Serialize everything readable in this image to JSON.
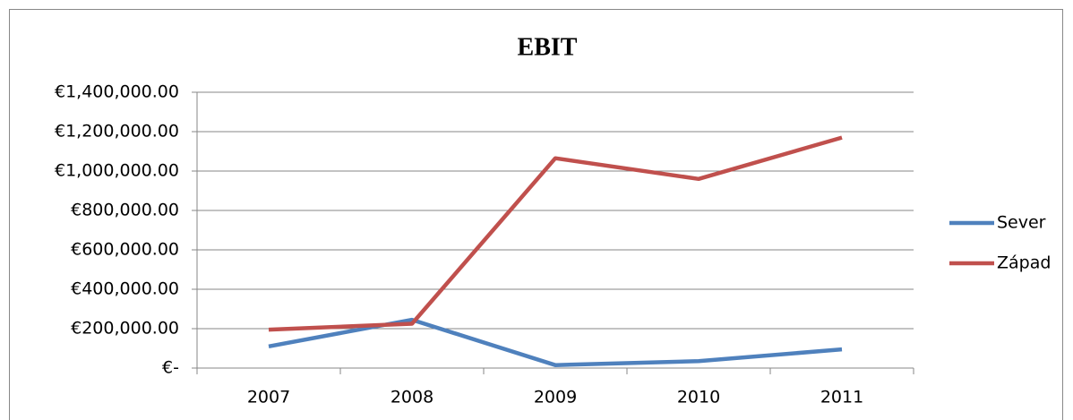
{
  "chart_data": {
    "type": "line",
    "title": "EBIT",
    "categories": [
      "2007",
      "2008",
      "2009",
      "2010",
      "2011"
    ],
    "series": [
      {
        "name": "Sever",
        "color": "#4f81bd",
        "values": [
          110000,
          245000,
          15000,
          35000,
          95000
        ]
      },
      {
        "name": "Západ",
        "color": "#c0504d",
        "values": [
          195000,
          225000,
          1065000,
          960000,
          1170000
        ]
      }
    ],
    "ylim": [
      0,
      1400000
    ],
    "yticks": [
      {
        "value": 0,
        "label": "€-"
      },
      {
        "value": 200000,
        "label": "€200,000.00"
      },
      {
        "value": 400000,
        "label": "€400,000.00"
      },
      {
        "value": 600000,
        "label": "€600,000.00"
      },
      {
        "value": 800000,
        "label": "€800,000.00"
      },
      {
        "value": 1000000,
        "label": "€1,000,000.00"
      },
      {
        "value": 1200000,
        "label": "€1,200,000.00"
      },
      {
        "value": 1400000,
        "label": "€1,400,000.00"
      }
    ],
    "grid": true,
    "legend": "right"
  }
}
